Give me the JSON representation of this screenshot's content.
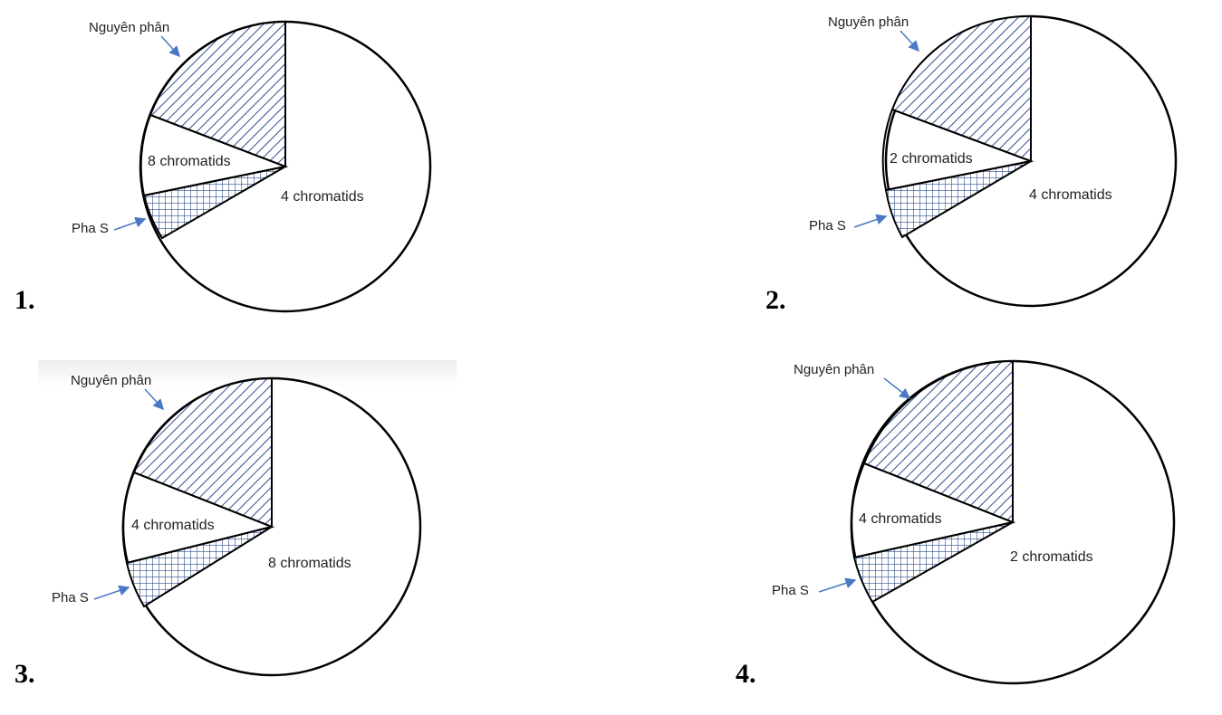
{
  "colors": {
    "stroke": "#000000",
    "hatch": "#2f4f8f",
    "arrow": "#4a78c4",
    "fill": "#ffffff"
  },
  "diagrams": [
    {
      "number": "1.",
      "big_label": "4 chromatids",
      "small_label": "8 chromatids",
      "mitosis_label": "Nguyên phân",
      "s_phase_label": "Pha S"
    },
    {
      "number": "2.",
      "big_label": "4 chromatids",
      "small_label": "2 chromatids",
      "mitosis_label": "Nguyên phân",
      "s_phase_label": "Pha S"
    },
    {
      "number": "3.",
      "big_label": "8 chromatids",
      "small_label": "4 chromatids",
      "mitosis_label": "Nguyên phân",
      "s_phase_label": "Pha S"
    },
    {
      "number": "4.",
      "big_label": "2 chromatids",
      "small_label": "4 chromatids",
      "mitosis_label": "Nguyên phân",
      "s_phase_label": "Pha S"
    }
  ]
}
